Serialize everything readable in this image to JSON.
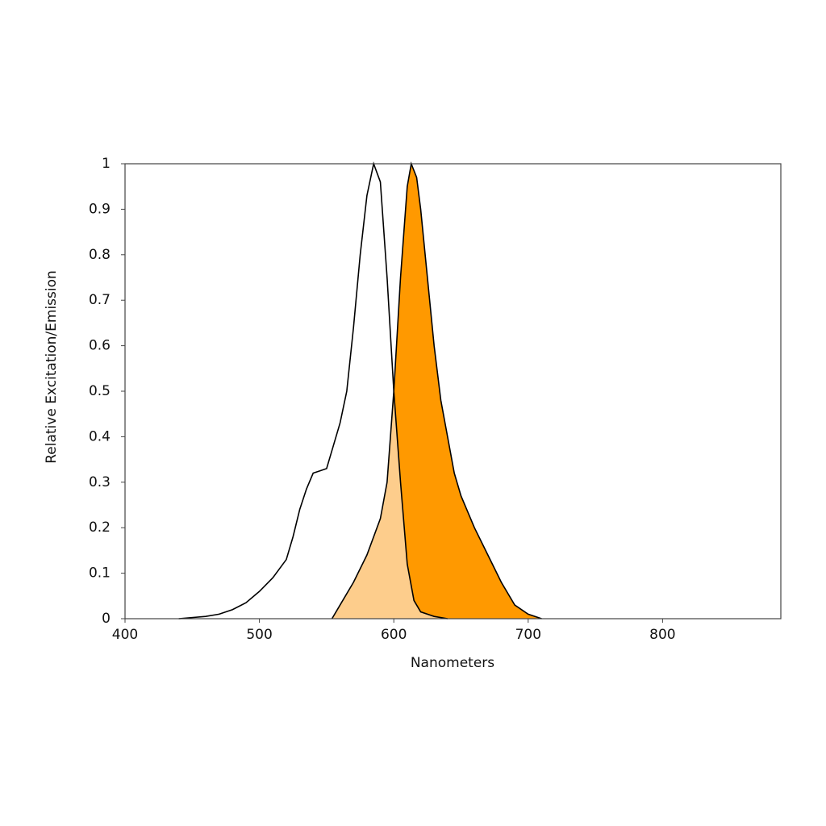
{
  "chart_data": {
    "type": "area",
    "xlabel": "Nanometers",
    "ylabel": "Relative Excitation/Emission",
    "xlim": [
      400,
      888
    ],
    "ylim": [
      0,
      1
    ],
    "xticks": [
      400,
      500,
      600,
      700,
      800
    ],
    "yticks": [
      0,
      0.1,
      0.2,
      0.3,
      0.4,
      0.5,
      0.6,
      0.7,
      0.8,
      0.9,
      1
    ],
    "grid": false,
    "overlap_color": "#fdcd8c",
    "series": [
      {
        "color": "#ffffff",
        "x": [
          440,
          460,
          470,
          480,
          490,
          500,
          510,
          520,
          525,
          530,
          535,
          540,
          545,
          550,
          555,
          560,
          565,
          570,
          575,
          580,
          585,
          590,
          595,
          600,
          605,
          610,
          615,
          620,
          630,
          640
        ],
        "values": [
          0,
          0.005,
          0.01,
          0.02,
          0.035,
          0.06,
          0.09,
          0.13,
          0.18,
          0.24,
          0.285,
          0.32,
          0.325,
          0.33,
          0.38,
          0.43,
          0.5,
          0.64,
          0.8,
          0.93,
          1,
          0.96,
          0.75,
          0.5,
          0.3,
          0.12,
          0.04,
          0.015,
          0.005,
          0
        ]
      },
      {
        "color": "#ff9900",
        "x": [
          554,
          560,
          570,
          580,
          590,
          595,
          600,
          605,
          610,
          613,
          617,
          620,
          625,
          630,
          635,
          640,
          645,
          650,
          660,
          670,
          680,
          690,
          700,
          710
        ],
        "values": [
          0,
          0.03,
          0.08,
          0.14,
          0.22,
          0.3,
          0.5,
          0.75,
          0.95,
          1,
          0.97,
          0.9,
          0.75,
          0.6,
          0.48,
          0.4,
          0.32,
          0.27,
          0.2,
          0.14,
          0.08,
          0.03,
          0.01,
          0
        ]
      }
    ]
  }
}
